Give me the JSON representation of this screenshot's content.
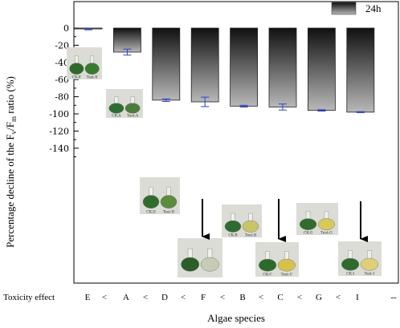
{
  "chart_data": {
    "type": "bar",
    "categories": [
      "E",
      "A",
      "D",
      "F",
      "B",
      "C",
      "G",
      "I"
    ],
    "series": [
      {
        "name": "24h",
        "values": [
          -1,
          -28,
          -84,
          -86,
          -91,
          -92,
          -96,
          -98
        ],
        "errors": [
          1,
          3.5,
          1.5,
          5.5,
          1,
          3.5,
          0.8,
          0.5
        ]
      }
    ],
    "ylim": [
      -150,
      0
    ],
    "yticks": [
      0,
      -20,
      -40,
      -60,
      -80,
      -100,
      -120,
      -140
    ],
    "ytick_labels": [
      "0",
      "-20",
      "-40",
      "-60",
      "-80",
      "-100",
      "-120",
      "-140"
    ],
    "ylabel_parts": [
      "Percentage decline of the F",
      "v",
      "/F",
      "m",
      " ratio (%)"
    ],
    "xlabel": "Algae species",
    "grid": false,
    "legend_position": "top-right",
    "colors": {
      "bar_top": "#101010",
      "bar_bottom": "#b8b8b8",
      "error_bar": "#2a3fd8",
      "arrow": "#000000"
    }
  },
  "toxicity_row": {
    "label": "Toxicity effect",
    "tokens": [
      "E",
      "<",
      "A",
      "<",
      "D",
      "<",
      "F",
      "<",
      "B",
      "<",
      "C",
      "<",
      "G",
      "<",
      "I",
      "--"
    ]
  },
  "photos": [
    {
      "caption": [
        "CK-E",
        "Test-E"
      ],
      "liquid_left": "#2f6a2a",
      "liquid_right": "#3a7a30"
    },
    {
      "caption": [
        "CK-A",
        "Test-A"
      ],
      "liquid_left": "#2d6c34",
      "liquid_right": "#4a7d3c"
    },
    {
      "caption": [
        "CK-D",
        "Test-D"
      ],
      "liquid_left": "#306c2e",
      "liquid_right": "#5c8c3e"
    },
    {
      "caption": [
        "CK-B",
        "Test-B"
      ],
      "liquid_left": "#2e6b30",
      "liquid_right": "#c9c468"
    },
    {
      "caption": [
        "CK-G",
        "Test-G"
      ],
      "liquid_left": "#2f6c2e",
      "liquid_right": "#d8ca5a"
    },
    {
      "caption": [
        "",
        ""
      ],
      "liquid_left": "#2b5e2a",
      "liquid_right": "#c6ccb5"
    },
    {
      "caption": [
        "CK-C",
        "Test-C"
      ],
      "liquid_left": "#2c6a2c",
      "liquid_right": "#d6c24a"
    },
    {
      "caption": [
        "CK-I",
        "Test-I"
      ],
      "liquid_left": "#2e6a2e",
      "liquid_right": "#e0cf78"
    }
  ]
}
